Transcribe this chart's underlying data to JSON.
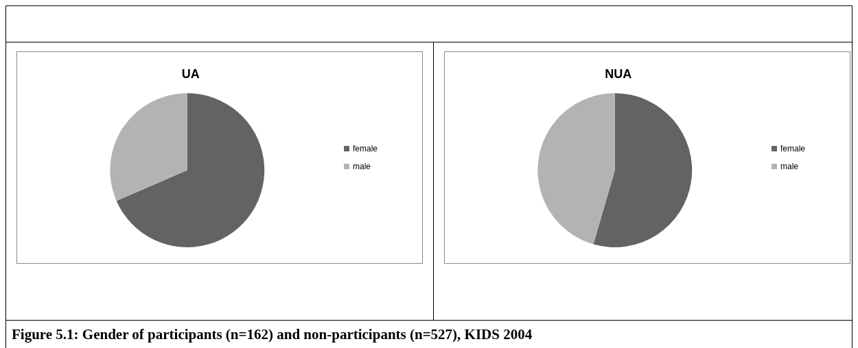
{
  "chart_data": [
    {
      "type": "pie",
      "title": "UA",
      "categories": [
        "female",
        "male"
      ],
      "values": [
        68.5,
        31.5
      ],
      "colors": [
        "#636363",
        "#b3b3b3"
      ],
      "legend": "right"
    },
    {
      "type": "pie",
      "title": "NUA",
      "categories": [
        "female",
        "male"
      ],
      "values": [
        54.5,
        45.5
      ],
      "colors": [
        "#636363",
        "#b3b3b3"
      ],
      "legend": "right",
      "annotations": [
        "Figure 5.1: Gender of participants (n=162) and non-participants (n=527), KIDS 2004"
      ]
    }
  ]
}
